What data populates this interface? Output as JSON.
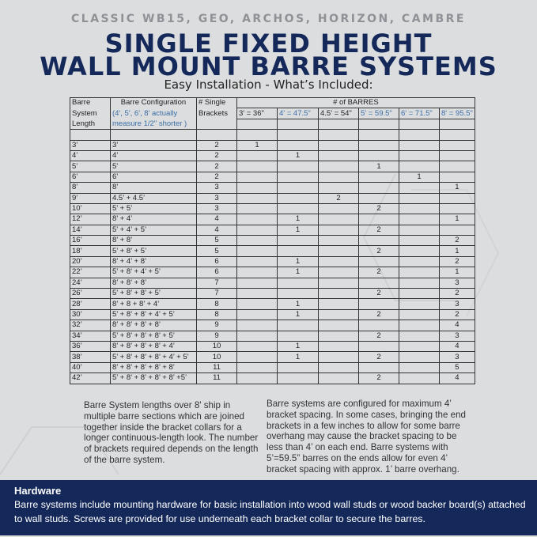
{
  "header": {
    "subtitle": "CLASSIC WB15, GEO, ARCHOS, HORIZON, CAMBRE",
    "title_line1": "SINGLE FIXED HEIGHT",
    "title_line2": "WALL MOUNT BARRE SYSTEMS",
    "section_title": "Easy Installation - What’s Included:"
  },
  "colors": {
    "navy": "#14295a",
    "accent_blue": "#3a6ea5",
    "background": "#dcdddf"
  },
  "table": {
    "header_row1": [
      "Barre",
      "Barre Configuration",
      "# Single",
      "# of BARRES"
    ],
    "header_row2": [
      "System",
      "(4', 5', 6', 8' actually",
      "Brackets",
      "3' = 36\"",
      "4' = 47.5\"",
      "4.5' = 54\"",
      "5' = 59.5\"",
      "6' = 71.5\"",
      "8' = 95.5\""
    ],
    "header_row3": [
      "Length",
      "measure 1/2\" shorter )"
    ],
    "rows": [
      [
        "3’",
        "3’",
        "2",
        "1",
        "",
        "",
        "",
        "",
        ""
      ],
      [
        "4’",
        "4’",
        "2",
        "",
        "1",
        "",
        "",
        "",
        ""
      ],
      [
        "5’",
        "5’",
        "2",
        "",
        "",
        "",
        "1",
        "",
        ""
      ],
      [
        "6’",
        "6’",
        "2",
        "",
        "",
        "",
        "",
        "1",
        ""
      ],
      [
        "8’",
        "8’",
        "3",
        "",
        "",
        "",
        "",
        "",
        "1"
      ],
      [
        "9’",
        "4.5’ + 4.5’",
        "3",
        "",
        "",
        "2",
        "",
        "",
        ""
      ],
      [
        "10’",
        "5’ + 5’",
        "3",
        "",
        "",
        "",
        "2",
        "",
        ""
      ],
      [
        "12’",
        "8’ + 4’",
        "4",
        "",
        "1",
        "",
        "",
        "",
        "1"
      ],
      [
        "14’",
        "5’ + 4’ + 5’",
        "4",
        "",
        "1",
        "",
        "2",
        "",
        ""
      ],
      [
        "16’",
        "8’ + 8’",
        "5",
        "",
        "",
        "",
        "",
        "",
        "2"
      ],
      [
        "18’",
        "5’ + 8’ + 5’",
        "5",
        "",
        "",
        "",
        "2",
        "",
        "1"
      ],
      [
        "20’",
        "8’ + 4’ + 8’",
        "6",
        "",
        "1",
        "",
        "",
        "",
        "2"
      ],
      [
        "22’",
        "5’ + 8’ + 4’ + 5’",
        "6",
        "",
        "1",
        "",
        "2",
        "",
        "1"
      ],
      [
        "24’",
        "8’ + 8’ + 8’",
        "7",
        "",
        "",
        "",
        "",
        "",
        "3"
      ],
      [
        "26’",
        "5’ + 8’ + 8’ + 5’",
        "7",
        "",
        "",
        "",
        "2",
        "",
        "2"
      ],
      [
        "28’",
        "8’ + 8 + 8’ + 4’",
        "8",
        "",
        "1",
        "",
        "",
        "",
        "3"
      ],
      [
        "30’",
        "5’ + 8’ + 8’ + 4’ + 5’",
        "8",
        "",
        "1",
        "",
        "2",
        "",
        "2"
      ],
      [
        "32’",
        "8’ + 8’ + 8’ + 8’",
        "9",
        "",
        "",
        "",
        "",
        "",
        "4"
      ],
      [
        "34’",
        "5’ + 8’ + 8’ + 8’ + 5’",
        "9",
        "",
        "",
        "",
        "2",
        "",
        "3"
      ],
      [
        "36’",
        "8’ + 8’ + 8’ + 8’ + 4’",
        "10",
        "",
        "1",
        "",
        "",
        "",
        "4"
      ],
      [
        "38’",
        "5’ + 8’ + 8’ + 8’ + 4’ + 5’",
        "10",
        "",
        "1",
        "",
        "2",
        "",
        "3"
      ],
      [
        "40’",
        "8’ + 8’ + 8’ + 8’ + 8’",
        "11",
        "",
        "",
        "",
        "",
        "",
        "5"
      ],
      [
        "42’",
        "5’ + 8’ + 8’ + 8’ + 8’ +5’",
        "11",
        "",
        "",
        "",
        "2",
        "",
        "4"
      ]
    ]
  },
  "notes": {
    "left": "Barre System lengths over 8' ship in multiple barre sections which are joined together inside the bracket collars for a longer continuous-length look. The number of brackets required depends on the length of the barre system.",
    "right": "Barre systems are configured for maximum 4’ bracket spacing.  In some cases, bringing the end brackets in a few inches to allow for some barre overhang may cause the bracket spacing to be less than 4’ on each end.  Barre systems with 5’=59.5” barres on the ends allow for even 4’ bracket spacing with approx. 1’ barre overhang."
  },
  "hardware": {
    "title": "Hardware",
    "body": "Barre systems include mounting hardware for basic installation into wood wall studs or wood backer board(s) attached to wall studs. Screws are provided for use underneath each bracket collar to secure the barres."
  }
}
